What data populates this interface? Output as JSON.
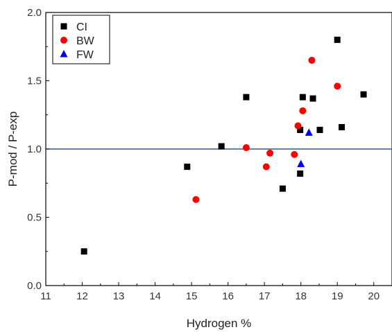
{
  "chart_data": {
    "type": "scatter",
    "title": "",
    "xlabel": "Hydrogen %",
    "ylabel": "P-mod / P-exp",
    "xlim": [
      11,
      20.5
    ],
    "ylim": [
      0.0,
      2.0
    ],
    "xticks": [
      "11",
      "12",
      "13",
      "14",
      "15",
      "16",
      "17",
      "18",
      "19",
      "20"
    ],
    "yticks": [
      "0.0",
      "0.5",
      "1.0",
      "1.5",
      "2.0"
    ],
    "grid": false,
    "legend_position": "top-left",
    "reference_line": {
      "y": 1.0,
      "color": "#1f5f99"
    },
    "series": [
      {
        "name": "CI",
        "marker": "square",
        "color": "#000000",
        "points": [
          {
            "x": 12.05,
            "y": 0.25
          },
          {
            "x": 14.88,
            "y": 0.87
          },
          {
            "x": 15.82,
            "y": 1.02
          },
          {
            "x": 16.5,
            "y": 1.38
          },
          {
            "x": 17.5,
            "y": 0.71
          },
          {
            "x": 17.98,
            "y": 0.82
          },
          {
            "x": 17.98,
            "y": 1.14
          },
          {
            "x": 18.05,
            "y": 1.38
          },
          {
            "x": 18.33,
            "y": 1.37
          },
          {
            "x": 18.52,
            "y": 1.14
          },
          {
            "x": 19.0,
            "y": 1.8
          },
          {
            "x": 19.12,
            "y": 1.16
          },
          {
            "x": 19.72,
            "y": 1.4
          }
        ]
      },
      {
        "name": "BW",
        "marker": "circle",
        "color": "#ff0000",
        "points": [
          {
            "x": 15.12,
            "y": 0.63
          },
          {
            "x": 16.5,
            "y": 1.01
          },
          {
            "x": 17.05,
            "y": 0.87
          },
          {
            "x": 17.15,
            "y": 0.97
          },
          {
            "x": 17.82,
            "y": 0.96
          },
          {
            "x": 17.92,
            "y": 1.17
          },
          {
            "x": 18.05,
            "y": 1.28
          },
          {
            "x": 18.3,
            "y": 1.65
          },
          {
            "x": 19.0,
            "y": 1.46
          }
        ]
      },
      {
        "name": "FW",
        "marker": "triangle",
        "color": "#0000ff",
        "points": [
          {
            "x": 18.0,
            "y": 0.89
          },
          {
            "x": 18.22,
            "y": 1.12
          }
        ]
      }
    ]
  }
}
